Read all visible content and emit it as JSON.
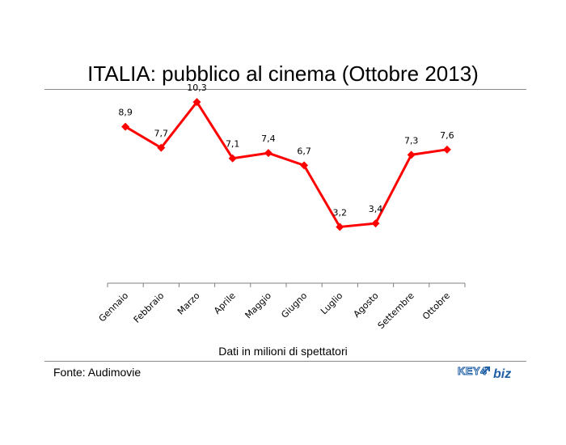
{
  "header": {
    "title": "ITALIA: pubblico al cinema (Ottobre 2013)"
  },
  "footer": {
    "source": "Fonte: Audimovie",
    "logo_key": "KEY4",
    "logo_biz": "biz"
  },
  "colors": {
    "series": "#ff0000",
    "axis": "#808080",
    "logo": "#1f5fa6"
  },
  "chart_data": {
    "type": "line",
    "title": "ITALIA: pubblico al cinema (Ottobre 2013)",
    "xlabel": "Dati in milioni di spettatori",
    "ylabel": "",
    "categories": [
      "Gennaio",
      "Febbraio",
      "Marzo",
      "Aprile",
      "Maggio",
      "Giugno",
      "Luglio",
      "Agosto",
      "Settembre",
      "Ottobre"
    ],
    "values": [
      8.9,
      7.7,
      10.3,
      7.1,
      7.4,
      6.7,
      3.2,
      3.4,
      7.3,
      7.6
    ],
    "data_labels": [
      "8,9",
      "7,7",
      "10,3",
      "7,1",
      "7,4",
      "6,7",
      "3,2",
      "3,4",
      "7,3",
      "7,6"
    ],
    "ylim": [
      0,
      15
    ],
    "grid": false,
    "legend": "none",
    "marker": "diamond"
  }
}
